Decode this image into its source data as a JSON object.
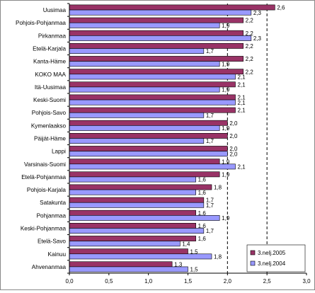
{
  "chart_data": {
    "type": "bar",
    "orientation": "horizontal",
    "categories": [
      "Uusimaa",
      "Pohjois-Pohjanmaa",
      "Pirkanmaa",
      "Etelä-Karjala",
      "Kanta-Häme",
      "KOKO MAA",
      "Itä-Uusimaa",
      "Keski-Suomi",
      "Pohjois-Savo",
      "Kymenlaakso",
      "Päijät-Häme",
      "Lappi",
      "Varsinais-Suomi",
      "Etelä-Pohjanmaa",
      "Pohjois-Karjala",
      "Satakunta",
      "Pohjanmaa",
      "Keski-Pohjanmaa",
      "Etelä-Savo",
      "Kainuu",
      "Ahvenanmaa"
    ],
    "series": [
      {
        "name": "3.nelj.2005",
        "color": "#993366",
        "values": [
          2.6,
          2.2,
          2.2,
          2.2,
          2.2,
          2.2,
          2.1,
          2.1,
          2.1,
          2.0,
          2.0,
          2.0,
          1.9,
          1.9,
          1.8,
          1.7,
          1.6,
          1.6,
          1.6,
          1.5,
          1.3
        ],
        "labels": [
          "2,6",
          "2,2",
          "2,2",
          "2,2",
          "2,2",
          "2,2",
          "2,1",
          "2,1",
          "2,1",
          "2,0",
          "2,0",
          "2,0",
          "1,9",
          "1,9",
          "1,8",
          "1,7",
          "1,6",
          "1,6",
          "1,6",
          "1,5",
          "1,3"
        ]
      },
      {
        "name": "3.nelj.2004",
        "color": "#9999ff",
        "values": [
          2.3,
          1.9,
          2.3,
          1.7,
          1.9,
          2.1,
          1.9,
          2.1,
          1.7,
          1.9,
          1.7,
          2.0,
          2.1,
          1.6,
          1.6,
          1.7,
          1.9,
          1.7,
          1.4,
          1.8,
          1.5
        ],
        "labels": [
          "2,3",
          "1,9",
          "2,3",
          "1,7",
          "1,9",
          "2,1",
          "1,9",
          "2,1",
          "1,7",
          "1,9",
          "1,7",
          "2,0",
          "2,1",
          "1,6",
          "1,6",
          "1,7",
          "1,9",
          "1,7",
          "1,4",
          "1,8",
          "1,5"
        ]
      }
    ],
    "xlim": [
      0,
      3.0
    ],
    "xticks": [
      0,
      0.5,
      1.0,
      1.5,
      2.0,
      2.5,
      3.0
    ],
    "xtick_labels": [
      "0,0",
      "0,5",
      "1,0",
      "1,5",
      "2,0",
      "2,5",
      "3,0"
    ],
    "reference_lines": [
      2.0,
      2.5
    ],
    "legend_position": "bottom-right",
    "grid": false
  }
}
